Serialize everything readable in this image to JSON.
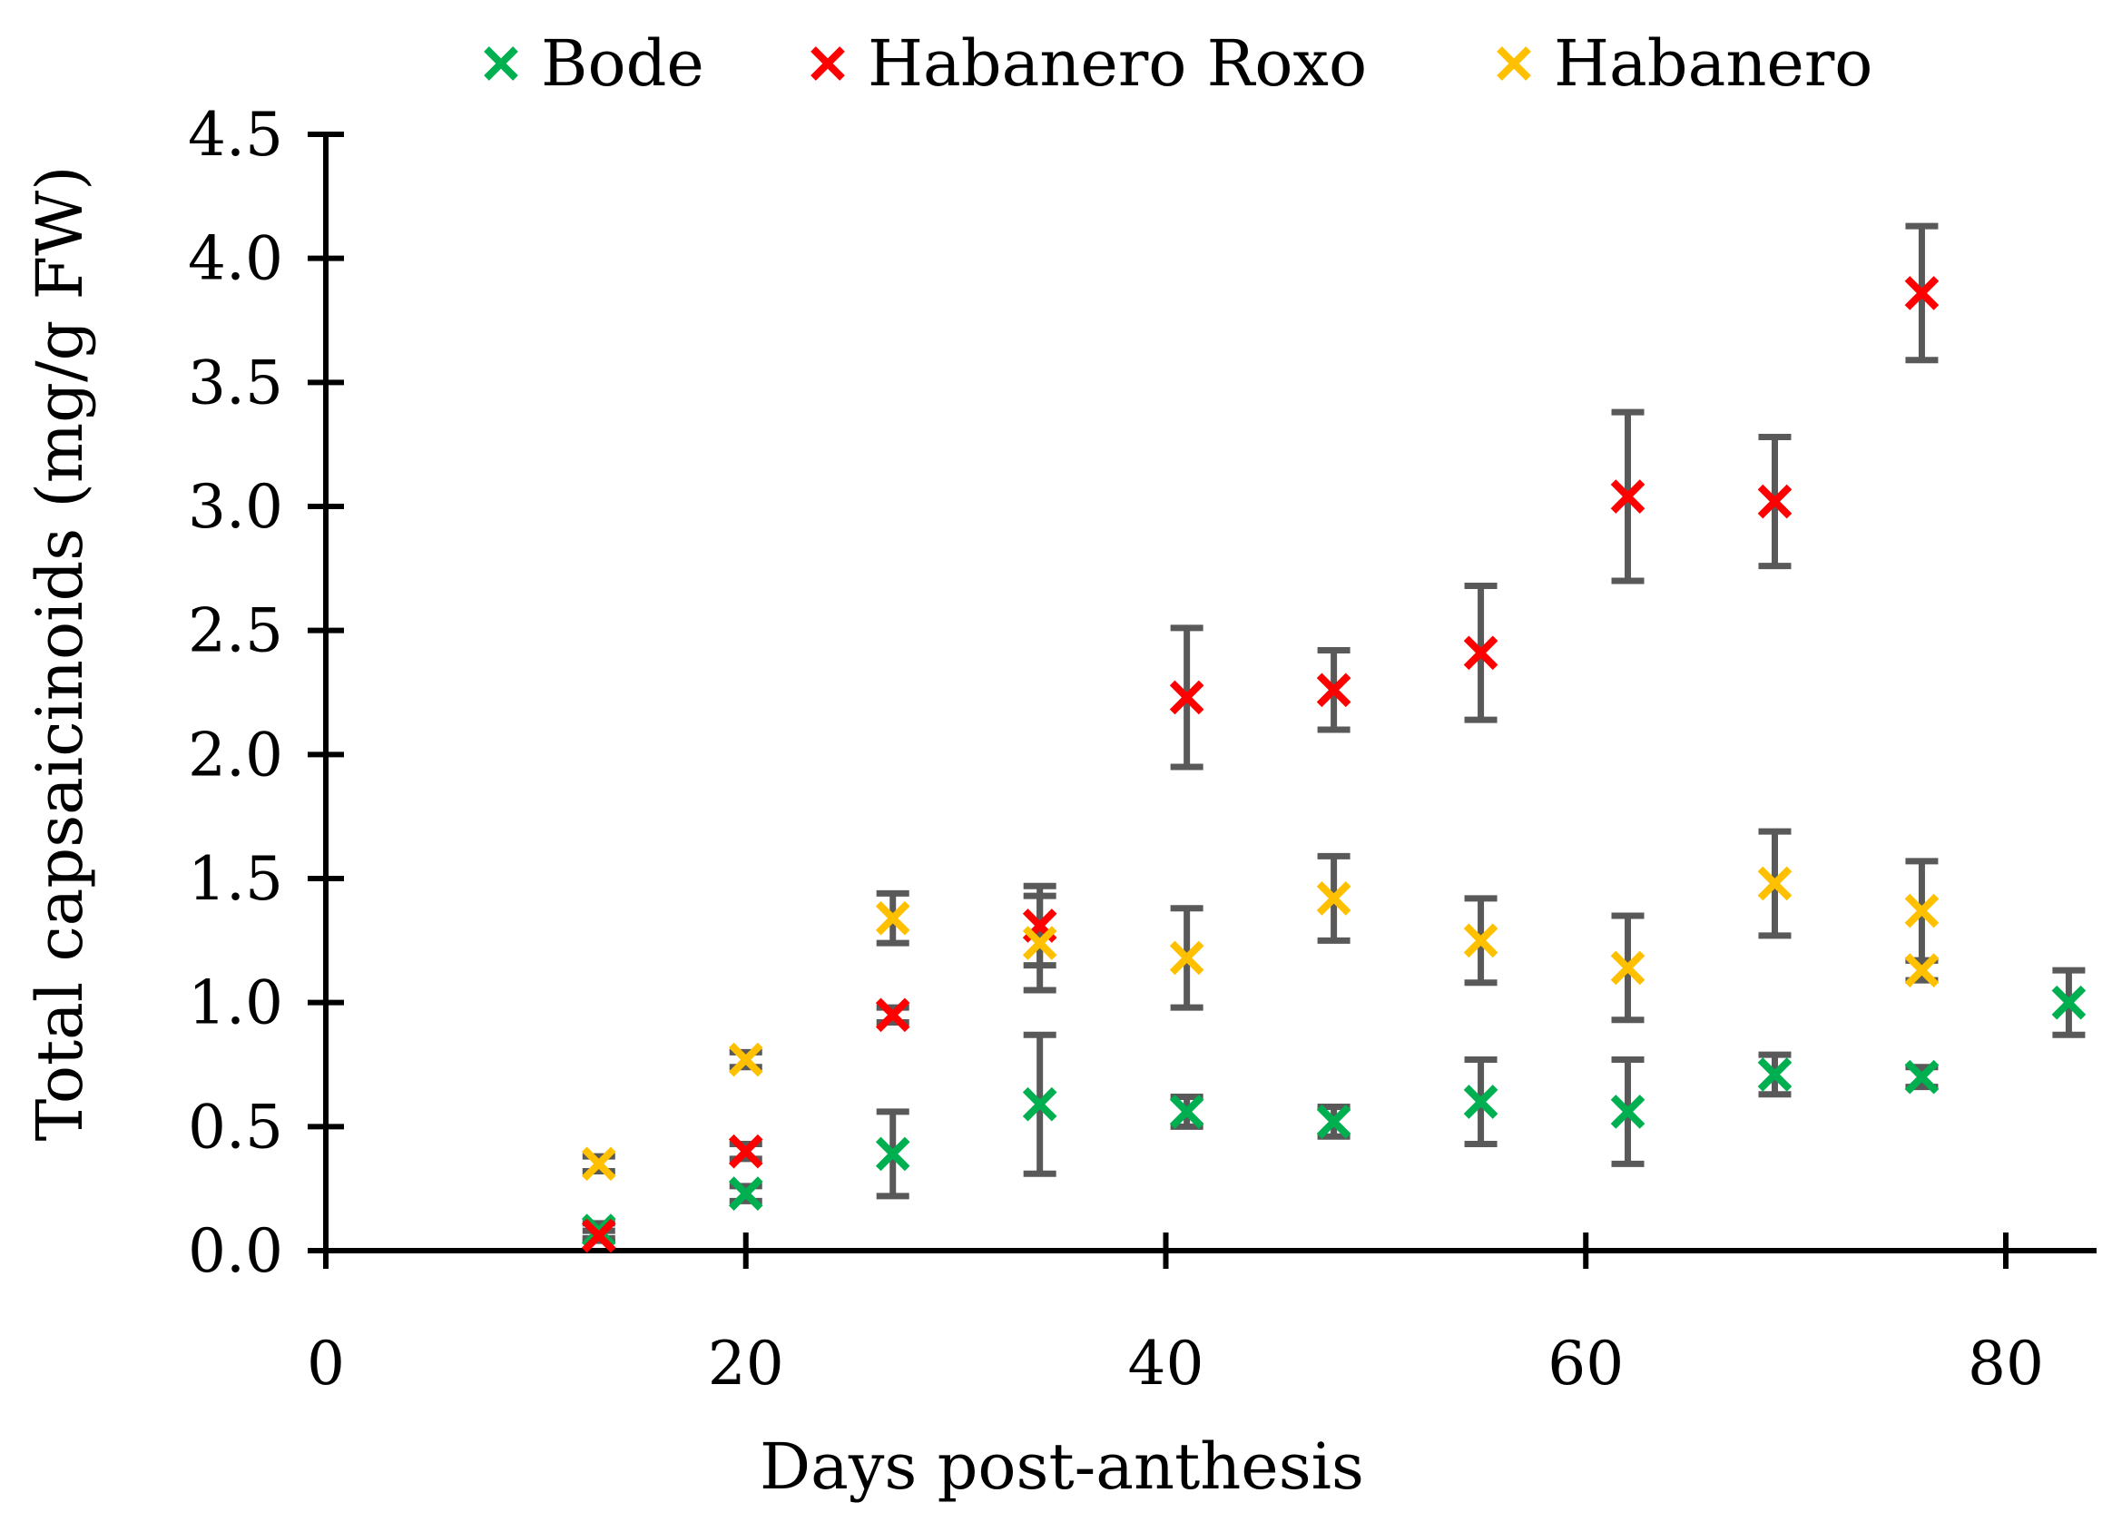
{
  "chart_data": {
    "type": "scatter",
    "xlabel": "Days post-anthesis",
    "ylabel": "Total capsaicinoids (mg/g FW)",
    "xlim": [
      0,
      85
    ],
    "ylim": [
      0,
      4.5
    ],
    "x_ticks": [
      "0",
      "20",
      "40",
      "60",
      "80"
    ],
    "x_tick_values": [
      0,
      20,
      40,
      60,
      80
    ],
    "y_ticks": [
      "0.0",
      "0.5",
      "1.0",
      "1.5",
      "2.0",
      "2.5",
      "3.0",
      "3.5",
      "4.0",
      "4.5"
    ],
    "y_tick_values": [
      0,
      0.5,
      1.0,
      1.5,
      2.0,
      2.5,
      3.0,
      3.5,
      4.0,
      4.5
    ],
    "legend_position": "top",
    "grid": false,
    "series": [
      {
        "name": "Bode",
        "color": "#00b050",
        "points": [
          {
            "x": 13,
            "y": 0.08,
            "err": 0.03
          },
          {
            "x": 20,
            "y": 0.23,
            "err": 0.03
          },
          {
            "x": 27,
            "y": 0.39,
            "err": 0.17
          },
          {
            "x": 34,
            "y": 0.59,
            "err": 0.28
          },
          {
            "x": 41,
            "y": 0.56,
            "err": 0.06
          },
          {
            "x": 48,
            "y": 0.52,
            "err": 0.06
          },
          {
            "x": 55,
            "y": 0.6,
            "err": 0.17
          },
          {
            "x": 62,
            "y": 0.56,
            "err": 0.21
          },
          {
            "x": 69,
            "y": 0.71,
            "err": 0.08
          },
          {
            "x": 76,
            "y": 0.7,
            "err": 0.04
          },
          {
            "x": 83,
            "y": 1.0,
            "err": 0.13
          }
        ]
      },
      {
        "name": "Habanero Roxo",
        "color": "#ff0000",
        "points": [
          {
            "x": 13,
            "y": 0.06,
            "err": 0.02
          },
          {
            "x": 20,
            "y": 0.4,
            "err": 0.03
          },
          {
            "x": 27,
            "y": 0.95,
            "err": 0.03
          },
          {
            "x": 34,
            "y": 1.31,
            "err": 0.16
          },
          {
            "x": 41,
            "y": 2.23,
            "err": 0.28
          },
          {
            "x": 48,
            "y": 2.26,
            "err": 0.16
          },
          {
            "x": 55,
            "y": 2.41,
            "err": 0.27
          },
          {
            "x": 62,
            "y": 3.04,
            "err": 0.34
          },
          {
            "x": 69,
            "y": 3.02,
            "err": 0.26
          },
          {
            "x": 76,
            "y": 3.86,
            "err": 0.27
          }
        ]
      },
      {
        "name": "Habanero",
        "color": "#ffc000",
        "points": [
          {
            "x": 13,
            "y": 0.35,
            "err": 0.03
          },
          {
            "x": 20,
            "y": 0.77,
            "err": 0.03
          },
          {
            "x": 27,
            "y": 1.34,
            "err": 0.1
          },
          {
            "x": 34,
            "y": 1.24,
            "err": 0.19
          },
          {
            "x": 41,
            "y": 1.18,
            "err": 0.2
          },
          {
            "x": 48,
            "y": 1.42,
            "err": 0.17
          },
          {
            "x": 55,
            "y": 1.25,
            "err": 0.17
          },
          {
            "x": 62,
            "y": 1.14,
            "err": 0.21
          },
          {
            "x": 69,
            "y": 1.48,
            "err": 0.21
          },
          {
            "x": 76,
            "y": 1.37,
            "err": 0.2
          },
          {
            "x": 76,
            "y": 1.13,
            "err": 0.04
          }
        ]
      }
    ]
  }
}
